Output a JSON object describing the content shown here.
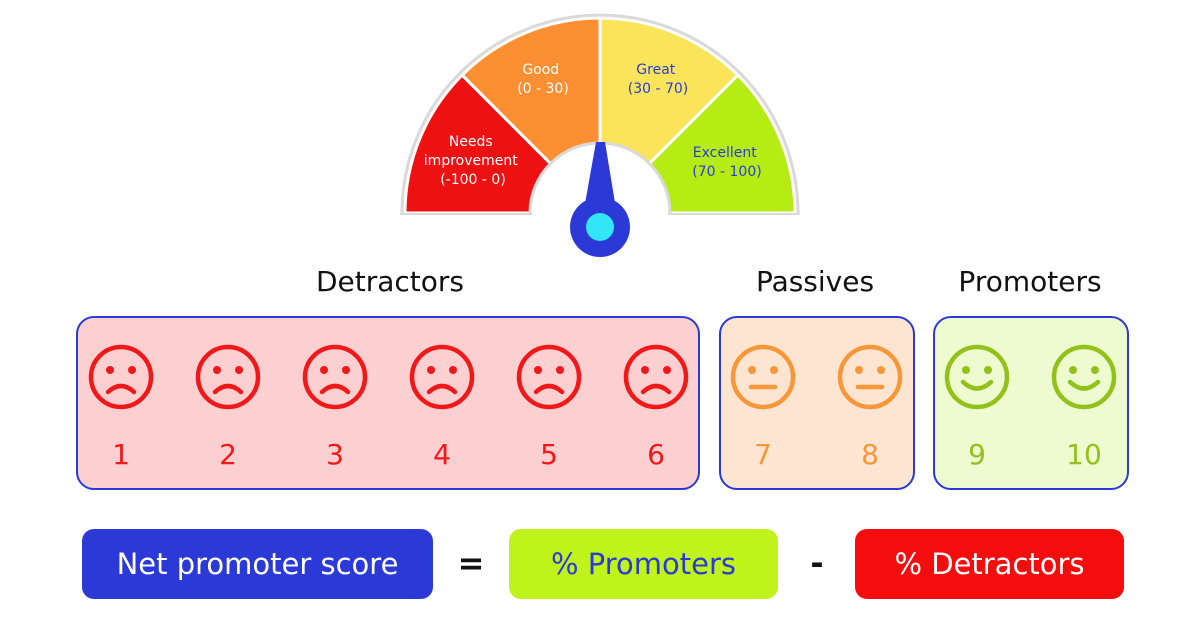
{
  "gauge": {
    "segments": [
      {
        "lines": [
          "Needs",
          "improvement",
          "(-100 - 0)"
        ],
        "color": "#ee1111",
        "text_color": "#ffffff"
      },
      {
        "lines": [
          "Good",
          "(0 - 30)"
        ],
        "color": "#fb8f32",
        "text_color": "#ffffff"
      },
      {
        "lines": [
          "Great",
          "(30 - 70)"
        ],
        "color": "#fae55a",
        "text_color": "#2b3ad6"
      },
      {
        "lines": [
          "Excellent",
          "(70 - 100)"
        ],
        "color": "#b4ec14",
        "text_color": "#2b3ad6"
      }
    ],
    "needle_color": "#2b3ad6",
    "hub_color": "#33e6f7"
  },
  "groups": {
    "detractors": {
      "title": "Detractors",
      "scores": [
        "1",
        "2",
        "3",
        "4",
        "5",
        "6"
      ],
      "color": "#f01818",
      "bg": "#fccfd0"
    },
    "passives": {
      "title": "Passives",
      "scores": [
        "7",
        "8"
      ],
      "color": "#f8973a",
      "bg": "#fde5d1"
    },
    "promoters": {
      "title": "Promoters",
      "scores": [
        "9",
        "10"
      ],
      "color": "#92c11a",
      "bg": "#eefbd1"
    }
  },
  "formula": {
    "nps": {
      "label": "Net promoter score",
      "bg": "#2b3ad6",
      "color": "#ffffff"
    },
    "equals": "=",
    "promoters": {
      "label": "% Promoters",
      "bg": "#bff31b",
      "color": "#2b3ad6"
    },
    "minus": "-",
    "detractors": {
      "label": "% Detractors",
      "bg": "#f40d0d",
      "color": "#ffffff"
    }
  }
}
